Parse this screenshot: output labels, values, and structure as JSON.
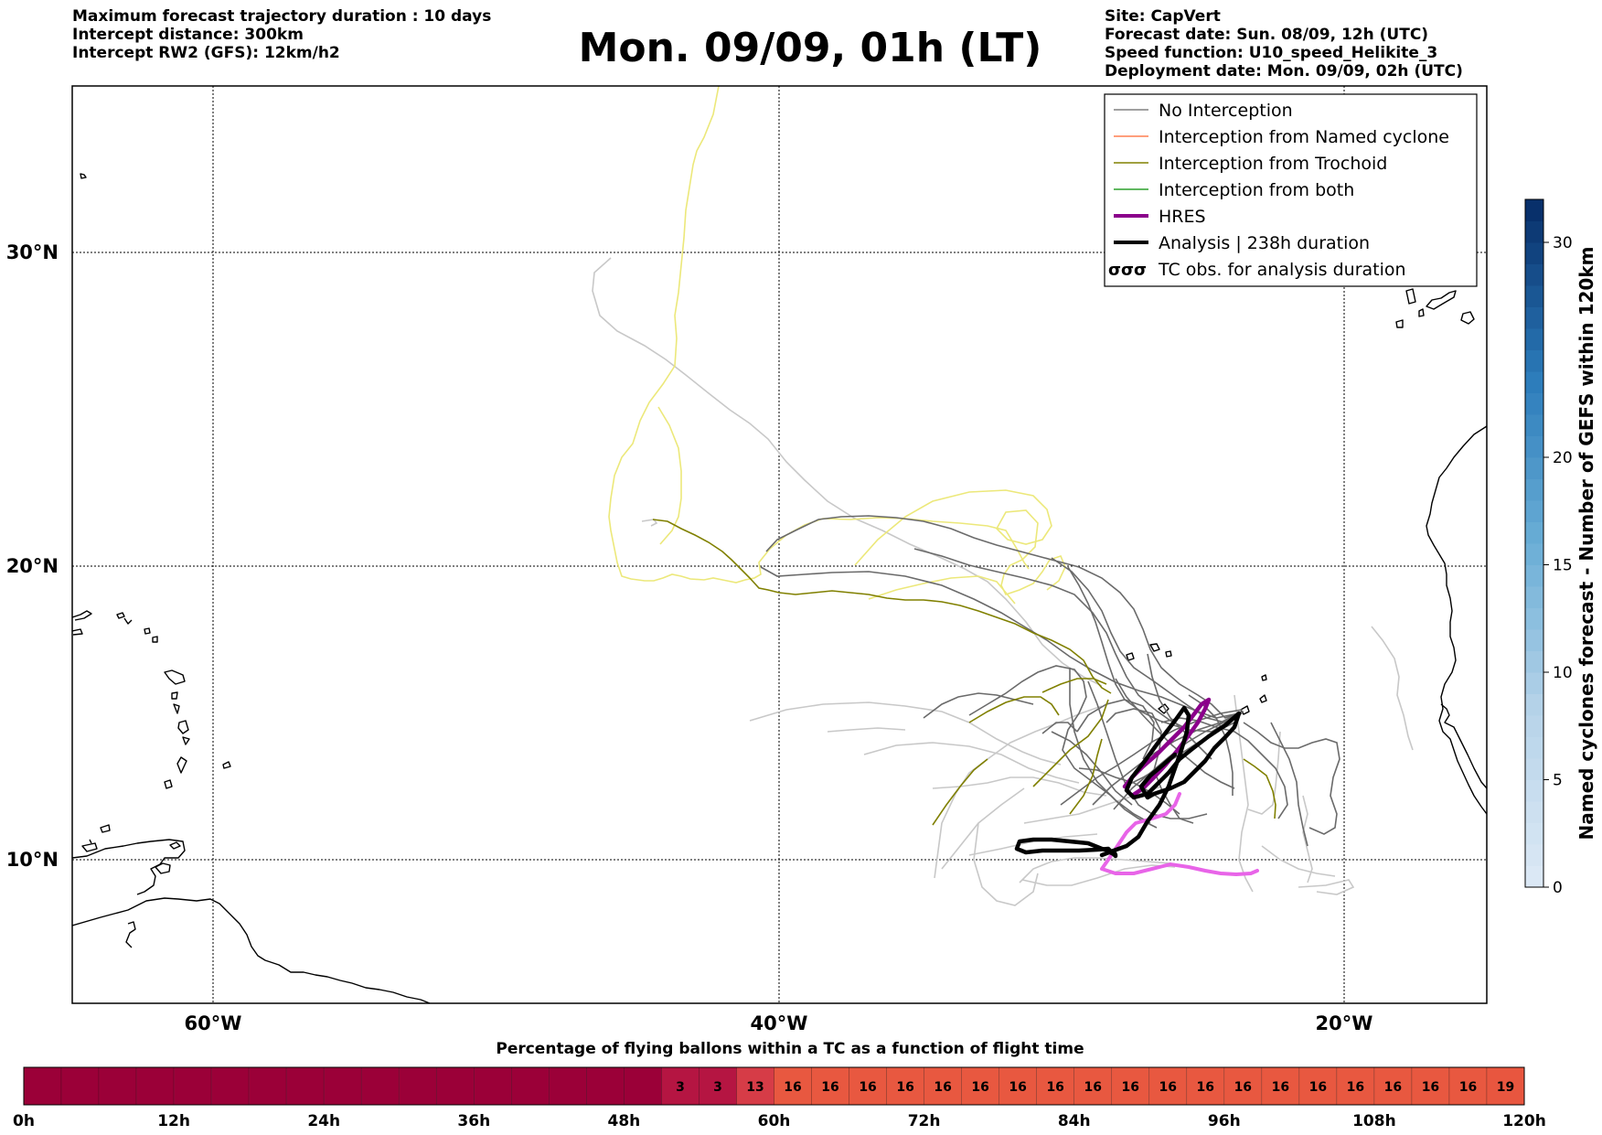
{
  "header": {
    "left_lines": [
      "Maximum forecast trajectory duration : 10 days",
      "Intercept distance: 300km",
      "Intercept RW2 (GFS):  12km/h2"
    ],
    "title": "Mon. 09/09, 01h (LT)",
    "right_lines": [
      "Site: CapVert",
      "Forecast date: Sun. 08/09, 12h (UTC)",
      "Speed function: U10_speed_Helikite_3",
      "Deployment date: Mon. 09/09, 02h (UTC)"
    ]
  },
  "map": {
    "lat_labels": [
      "30°N",
      "20°N",
      "10°N"
    ],
    "lon_labels": [
      "60°W",
      "40°W",
      "20°W"
    ],
    "colors": {
      "no_interception": "#808080",
      "light_gray": "#c8c8c8",
      "named_cyclone": "#ff7f50",
      "trochoid": "#808000",
      "trochoid_light": "#ece87a",
      "both": "#2ca02c",
      "hres": "#8b008b",
      "hres_light": "#e864e8",
      "analysis": "#000000"
    }
  },
  "legend": {
    "items": [
      {
        "label": "No Interception",
        "color": "#808080",
        "width": 1.5
      },
      {
        "label": "Interception from Named cyclone",
        "color": "#ff7f50",
        "width": 1.5
      },
      {
        "label": "Interception from Trochoid",
        "color": "#808000",
        "width": 1.5
      },
      {
        "label": "Interception from both",
        "color": "#2ca02c",
        "width": 1.5
      },
      {
        "label": "HRES",
        "color": "#8b008b",
        "width": 4
      },
      {
        "label": "Analysis | 238h duration",
        "color": "#000000",
        "width": 4
      },
      {
        "label": "TC obs. for analysis duration",
        "icon": "cyclone-symbols-icon"
      }
    ]
  },
  "colorbar": {
    "label": "Named cyclones forecast - Number of GEFS within 120km",
    "ticks": [
      "0",
      "5",
      "10",
      "15",
      "20",
      "30"
    ],
    "tick_values": [
      0,
      5,
      10,
      15,
      20,
      30
    ],
    "range": [
      0,
      32
    ]
  },
  "timebar": {
    "title": "Percentage of flying ballons within a TC as a function of flight time",
    "tick_labels": [
      "0h",
      "12h",
      "24h",
      "36h",
      "48h",
      "60h",
      "72h",
      "84h",
      "96h",
      "108h",
      "120h"
    ],
    "cell_hours": 3,
    "values": [
      0,
      0,
      0,
      0,
      0,
      0,
      0,
      0,
      0,
      0,
      0,
      0,
      0,
      0,
      0,
      0,
      0,
      3,
      3,
      13,
      16,
      16,
      16,
      16,
      16,
      16,
      16,
      16,
      16,
      16,
      16,
      16,
      16,
      16,
      16,
      16,
      16,
      16,
      16,
      19
    ],
    "shown_labels": [
      "",
      "",
      "",
      "",
      "",
      "",
      "",
      "",
      "",
      "",
      "",
      "",
      "",
      "",
      "",
      "",
      "",
      "3",
      "3",
      "13",
      "16",
      "16",
      "16",
      "16",
      "16",
      "16",
      "16",
      "16",
      "16",
      "16",
      "16",
      "16",
      "16",
      "16",
      "16",
      "16",
      "16",
      "16",
      "16",
      "19"
    ]
  }
}
